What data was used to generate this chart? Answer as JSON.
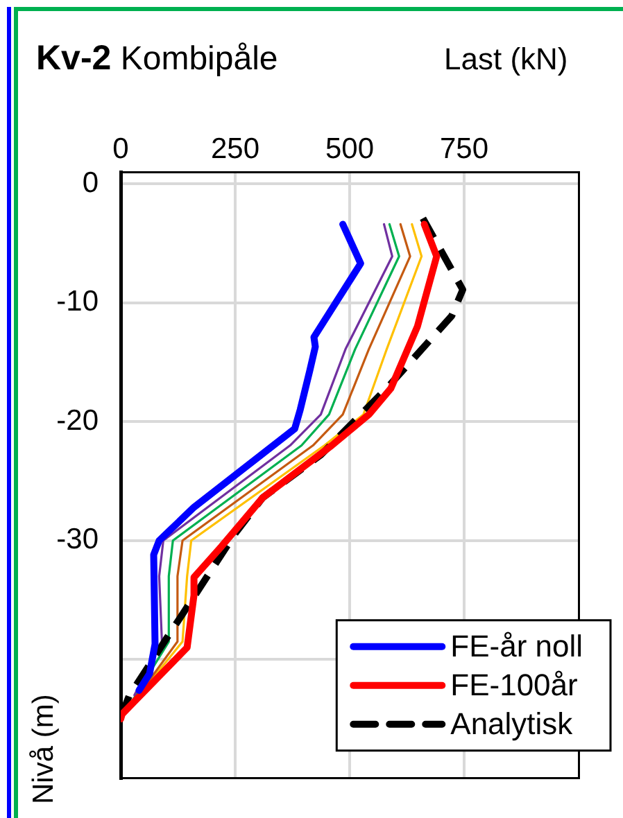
{
  "chart_data": {
    "type": "line",
    "title": "Kv-2",
    "subtitle": "Kombipåle",
    "xlabel": "Last (kN)",
    "ylabel": "Nivå (m)",
    "xlim": [
      0,
      1000
    ],
    "xticks": [
      0,
      250,
      500,
      750
    ],
    "ylim": [
      -50,
      1
    ],
    "yticks": [
      0,
      -10,
      -20,
      -30,
      {
        "value": -40,
        "label": null
      }
    ],
    "grid": true,
    "legend": "bottom right",
    "marker": "none",
    "series": [
      {
        "name": "FE-år noll",
        "color": "#0000ff",
        "x": [
          485,
          524,
          422,
          425,
          413,
          392,
          380,
          160,
          84,
          72,
          75,
          63,
          40
        ],
        "values": [
          -3.4,
          -6.7,
          -12.9,
          -13.7,
          -15.7,
          -19,
          -20.6,
          -27.2,
          -30,
          -31.2,
          -38.7,
          -41.2,
          -42.6
        ]
      },
      {
        "color": "#7030a0",
        "x": [
          575,
          593,
          491,
          437,
          370,
          93,
          84,
          90,
          30
        ],
        "values": [
          -3.4,
          -6.1,
          -13.9,
          -19.4,
          -22,
          -30,
          -33,
          -38.5,
          -43
        ]
      },
      {
        "color": "#00b050",
        "x": [
          587,
          608,
          512,
          455,
          395,
          114,
          105,
          105,
          25
        ],
        "values": [
          -3.4,
          -6.1,
          -13.9,
          -19.4,
          -22,
          -30,
          -33,
          -38.5,
          -43.5
        ]
      },
      {
        "color": "#c55a11",
        "x": [
          611,
          632,
          542,
          485,
          420,
          135,
          124,
          124,
          20
        ],
        "values": [
          -3.4,
          -6.1,
          -13.9,
          -19.4,
          -22,
          -30,
          -33,
          -38.5,
          -44
        ]
      },
      {
        "color": "#ffc000",
        "x": [
          636,
          657,
          581,
          530,
          445,
          154,
          145,
          135,
          15
        ],
        "values": [
          -3.4,
          -6.1,
          -13.9,
          -19.4,
          -22,
          -30,
          -33,
          -38.5,
          -44.2
        ]
      },
      {
        "name": "FE-100år",
        "color": "#ff0000",
        "x": [
          663,
          690,
          648,
          590,
          542,
          461,
          310,
          220,
          160,
          160,
          145,
          3,
          0
        ],
        "values": [
          -3.4,
          -6.1,
          -12,
          -17.2,
          -19.4,
          -22,
          -26.4,
          -30.5,
          -33.1,
          -34.6,
          -39,
          -44.6,
          -45
        ]
      },
      {
        "name": "Analytisk",
        "color": "#000000",
        "line_style": "dashed",
        "x": [
          660,
          747,
          723,
          581,
          437,
          310,
          250,
          169,
          99,
          18,
          3
        ],
        "values": [
          -2.9,
          -8.9,
          -11.1,
          -17.2,
          -22.8,
          -26.4,
          -29.4,
          -34.2,
          -38.3,
          -43.1,
          -44.6
        ]
      }
    ]
  }
}
